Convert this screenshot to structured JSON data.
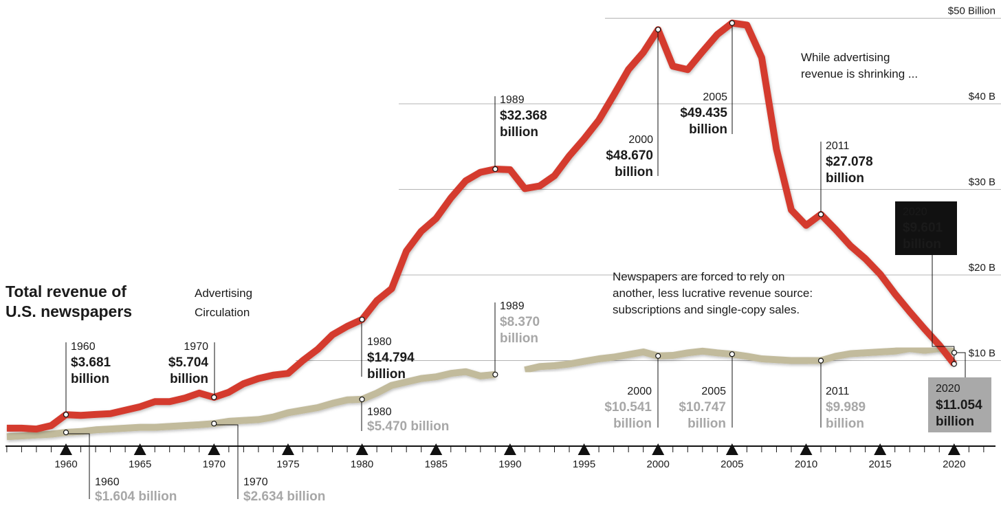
{
  "chart_data": {
    "type": "line",
    "title_lines": [
      "Total revenue of",
      "U.S. newspapers"
    ],
    "ylim": [
      0,
      50
    ],
    "y_ticks": [
      {
        "value": 50,
        "label": "$50 Billion"
      },
      {
        "value": 40,
        "label": "$40 B"
      },
      {
        "value": 30,
        "label": "$30 B"
      },
      {
        "value": 20,
        "label": "$20 B"
      },
      {
        "value": 10,
        "label": "$10 B"
      }
    ],
    "xlim": [
      1956,
      2022
    ],
    "x_tick_labels": [
      "1960",
      "1965",
      "1970",
      "1975",
      "1980",
      "1985",
      "1990",
      "1995",
      "2000",
      "2005",
      "2010",
      "2015",
      "2020"
    ],
    "series": [
      {
        "name": "Advertising",
        "color": "#d43a2e",
        "x": [
          1956,
          1957,
          1958,
          1959,
          1960,
          1961,
          1962,
          1963,
          1964,
          1965,
          1966,
          1967,
          1968,
          1969,
          1970,
          1971,
          1972,
          1973,
          1974,
          1975,
          1976,
          1977,
          1978,
          1979,
          1980,
          1981,
          1982,
          1983,
          1984,
          1985,
          1986,
          1987,
          1988,
          1989,
          1990,
          1991,
          1992,
          1993,
          1994,
          1995,
          1996,
          1997,
          1998,
          1999,
          2000,
          2001,
          2002,
          2003,
          2004,
          2005,
          2006,
          2007,
          2008,
          2009,
          2010,
          2011,
          2012,
          2013,
          2014,
          2015,
          2016,
          2017,
          2018,
          2019,
          2020
        ],
        "values": [
          2.1,
          2.1,
          2.0,
          2.4,
          3.681,
          3.6,
          3.7,
          3.8,
          4.2,
          4.6,
          5.2,
          5.2,
          5.6,
          6.2,
          5.704,
          6.3,
          7.3,
          7.9,
          8.3,
          8.5,
          10.0,
          11.3,
          13.0,
          14.0,
          14.794,
          17.0,
          18.4,
          22.8,
          25.1,
          26.6,
          29.0,
          31.0,
          32.0,
          32.368,
          32.3,
          30.1,
          30.4,
          31.6,
          33.9,
          35.9,
          38.1,
          41.0,
          44.0,
          46.0,
          48.67,
          44.4,
          44.0,
          46.1,
          48.1,
          49.435,
          49.2,
          45.4,
          34.7,
          27.6,
          25.8,
          27.078,
          25.3,
          23.4,
          21.9,
          20.1,
          17.8,
          15.7,
          13.7,
          11.8,
          9.601
        ]
      },
      {
        "name": "Circulation",
        "color": "#c2bb9c",
        "segments": [
          {
            "x": [
              1956,
              1957,
              1958,
              1959,
              1960,
              1961,
              1962,
              1963,
              1964,
              1965,
              1966,
              1967,
              1968,
              1969,
              1970,
              1971,
              1972,
              1973,
              1974,
              1975,
              1976,
              1977,
              1978,
              1979,
              1980,
              1981,
              1982,
              1983,
              1984,
              1985,
              1986,
              1987,
              1988,
              1989
            ],
            "values": [
              1.1,
              1.2,
              1.3,
              1.4,
              1.604,
              1.7,
              1.9,
              2.0,
              2.1,
              2.2,
              2.2,
              2.3,
              2.4,
              2.5,
              2.634,
              2.9,
              3.0,
              3.1,
              3.4,
              3.9,
              4.2,
              4.5,
              5.0,
              5.4,
              5.47,
              6.2,
              7.1,
              7.5,
              7.9,
              8.1,
              8.5,
              8.7,
              8.2,
              8.37
            ]
          },
          {
            "x": [
              1991,
              1992,
              1993,
              1994,
              1995,
              1996,
              1997,
              1998,
              1999,
              2000,
              2001,
              2002,
              2003,
              2004,
              2005,
              2006,
              2007,
              2008,
              2009,
              2010,
              2011,
              2012,
              2013,
              2014,
              2015,
              2016,
              2017,
              2018,
              2019,
              2020
            ],
            "values": [
              8.9,
              9.3,
              9.4,
              9.6,
              9.9,
              10.2,
              10.4,
              10.7,
              11.0,
              10.541,
              10.6,
              10.9,
              11.1,
              10.9,
              10.747,
              10.5,
              10.2,
              10.1,
              10.0,
              10.0,
              9.989,
              10.5,
              10.8,
              10.9,
              11.0,
              11.1,
              11.4,
              11.2,
              11.4,
              11.054
            ]
          }
        ]
      }
    ],
    "annotations_advertising": [
      {
        "year": "1960",
        "value": "$3.681",
        "unit": "billion"
      },
      {
        "year": "1970",
        "value": "$5.704",
        "unit": "billion"
      },
      {
        "year": "1980",
        "value": "$14.794",
        "unit": "billion"
      },
      {
        "year": "1989",
        "value": "$32.368",
        "unit": "billion"
      },
      {
        "year": "2000",
        "value": "$48.670",
        "unit": "billion"
      },
      {
        "year": "2005",
        "value": "$49.435",
        "unit": "billion"
      },
      {
        "year": "2011",
        "value": "$27.078",
        "unit": "billion"
      },
      {
        "year": "2020",
        "value": "$9.601",
        "unit": "billion"
      }
    ],
    "annotations_circulation": [
      {
        "year": "1960",
        "value": "$1.604 billion"
      },
      {
        "year": "1970",
        "value": "$2.634 billion"
      },
      {
        "year": "1980",
        "value": "$5.470 billion"
      },
      {
        "year": "1989",
        "value": "$8.370",
        "unit": "billion"
      },
      {
        "year": "2000",
        "value": "$10.541",
        "unit": "billion"
      },
      {
        "year": "2005",
        "value": "$10.747",
        "unit": "billion"
      },
      {
        "year": "2011",
        "value": "$9.989",
        "unit": "billion"
      },
      {
        "year": "2020",
        "value": "$11.054",
        "unit": "billion"
      }
    ],
    "notes": [
      {
        "lines": [
          "While advertising",
          "revenue is shrinking ..."
        ]
      },
      {
        "lines": [
          "Newspapers are forced to rely on",
          "another, less lucrative revenue source:",
          "subscriptions and single-copy sales."
        ]
      }
    ],
    "colors": {
      "advertising": "#d43a2e",
      "circulation": "#c2bb9c",
      "gridline": "#9a9a9a",
      "label_gray": "#a7a7a7",
      "box_black": "#111111",
      "box_gray": "#a9a9a9"
    }
  }
}
